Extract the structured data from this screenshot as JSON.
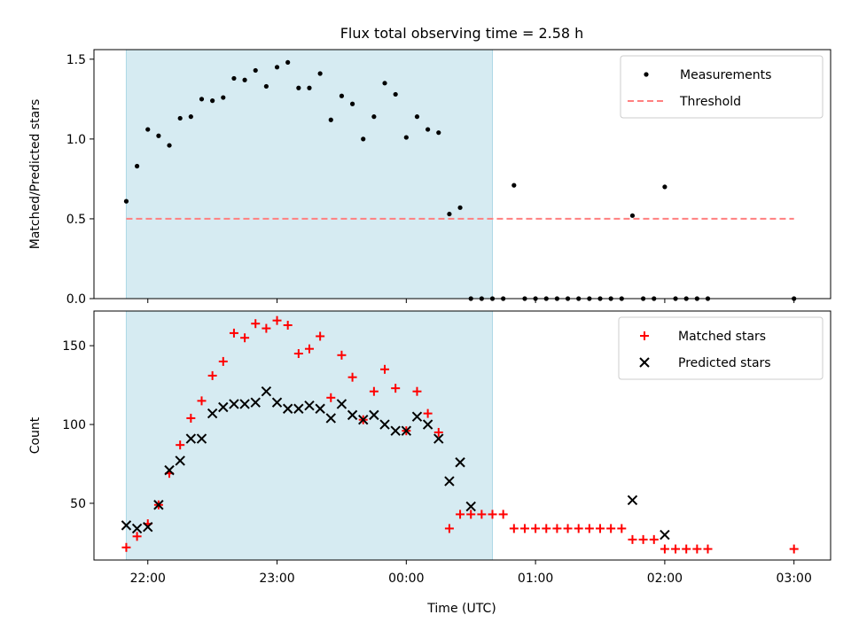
{
  "title": "Flux total observing time = 2.58 h",
  "xlabel": "Time (UTC)",
  "colors": {
    "shade": "#add8e6",
    "threshold": "#ff7f7f",
    "measurement": "#000000",
    "matched": "#ff0000",
    "predicted": "#000000"
  },
  "chart_data": [
    {
      "type": "scatter",
      "ylabel": "Matched/Predicted stars",
      "ylim": [
        0,
        1.56
      ],
      "yticks": [
        "0.0",
        "0.5",
        "1.0",
        "1.5"
      ],
      "ytick_values": [
        0,
        0.5,
        1.0,
        1.5
      ],
      "shaded_interval": [
        "21:50",
        "00:40"
      ],
      "legend_position": "upper right",
      "threshold": {
        "name": "Threshold",
        "value": 0.5,
        "x_range": [
          "21:50",
          "03:00"
        ]
      },
      "series": [
        {
          "name": "Measurements",
          "marker": "dot",
          "x": [
            "21:50",
            "21:55",
            "22:00",
            "22:05",
            "22:10",
            "22:15",
            "22:20",
            "22:25",
            "22:30",
            "22:35",
            "22:40",
            "22:45",
            "22:50",
            "22:55",
            "23:00",
            "23:05",
            "23:10",
            "23:15",
            "23:20",
            "23:25",
            "23:30",
            "23:35",
            "23:40",
            "23:45",
            "23:50",
            "23:55",
            "00:00",
            "00:05",
            "00:10",
            "00:15",
            "00:20",
            "00:25",
            "00:30",
            "00:35",
            "00:40",
            "00:45",
            "00:50",
            "00:55",
            "01:00",
            "01:05",
            "01:10",
            "01:15",
            "01:20",
            "01:25",
            "01:30",
            "01:35",
            "01:40",
            "01:45",
            "01:50",
            "01:55",
            "02:00",
            "02:05",
            "02:10",
            "02:15",
            "02:20",
            "03:00"
          ],
          "y": [
            0.61,
            0.83,
            1.06,
            1.02,
            0.96,
            1.13,
            1.14,
            1.25,
            1.24,
            1.26,
            1.38,
            1.37,
            1.43,
            1.33,
            1.45,
            1.48,
            1.32,
            1.32,
            1.41,
            1.12,
            1.27,
            1.22,
            1.0,
            1.14,
            1.35,
            1.28,
            1.01,
            1.14,
            1.06,
            1.04,
            0.53,
            0.57,
            0,
            0,
            0,
            0,
            0.71,
            0,
            0,
            0,
            0,
            0,
            0,
            0,
            0,
            0,
            0,
            0.52,
            0,
            0,
            0.7,
            0,
            0,
            0,
            0,
            0
          ]
        }
      ]
    },
    {
      "type": "scatter",
      "ylabel": "Count",
      "ylim": [
        14,
        172
      ],
      "yticks": [
        "50",
        "100",
        "150"
      ],
      "ytick_values": [
        50,
        100,
        150
      ],
      "shaded_interval": [
        "21:50",
        "00:40"
      ],
      "legend_position": "upper right",
      "xticks": [
        "22:00",
        "23:00",
        "00:00",
        "01:00",
        "02:00",
        "03:00"
      ],
      "xtick_values": [
        "22:00",
        "23:00",
        "00:00",
        "01:00",
        "02:00",
        "03:00"
      ],
      "series": [
        {
          "name": "Matched stars",
          "marker": "plus",
          "x": [
            "21:50",
            "21:55",
            "22:00",
            "22:05",
            "22:10",
            "22:15",
            "22:20",
            "22:25",
            "22:30",
            "22:35",
            "22:40",
            "22:45",
            "22:50",
            "22:55",
            "23:00",
            "23:05",
            "23:10",
            "23:15",
            "23:20",
            "23:25",
            "23:30",
            "23:35",
            "23:40",
            "23:45",
            "23:50",
            "23:55",
            "00:00",
            "00:05",
            "00:10",
            "00:15",
            "00:20",
            "00:25",
            "00:30",
            "00:35",
            "00:40",
            "00:45",
            "00:50",
            "00:55",
            "01:00",
            "01:05",
            "01:10",
            "01:15",
            "01:20",
            "01:25",
            "01:30",
            "01:35",
            "01:40",
            "01:45",
            "01:50",
            "01:55",
            "02:00",
            "02:05",
            "02:10",
            "02:15",
            "02:20",
            "03:00"
          ],
          "y": [
            22,
            29,
            37,
            49,
            69,
            87,
            104,
            115,
            131,
            140,
            158,
            155,
            164,
            161,
            166,
            163,
            145,
            148,
            156,
            117,
            144,
            130,
            103,
            121,
            135,
            123,
            96,
            121,
            107,
            95,
            34,
            43,
            43,
            43,
            43,
            43,
            34,
            34,
            34,
            34,
            34,
            34,
            34,
            34,
            34,
            34,
            34,
            27,
            27,
            27,
            21,
            21,
            21,
            21,
            21,
            21
          ]
        },
        {
          "name": "Predicted stars",
          "marker": "x",
          "x": [
            "21:50",
            "21:55",
            "22:00",
            "22:05",
            "22:10",
            "22:15",
            "22:20",
            "22:25",
            "22:30",
            "22:35",
            "22:40",
            "22:45",
            "22:50",
            "22:55",
            "23:00",
            "23:05",
            "23:10",
            "23:15",
            "23:20",
            "23:25",
            "23:30",
            "23:35",
            "23:40",
            "23:45",
            "23:50",
            "23:55",
            "00:00",
            "00:05",
            "00:10",
            "00:15",
            "00:20",
            "00:25",
            "00:30",
            "01:45",
            "02:00"
          ],
          "y": [
            36,
            34,
            35,
            49,
            71,
            77,
            91,
            91,
            107,
            111,
            113,
            113,
            114,
            121,
            114,
            110,
            110,
            112,
            110,
            104,
            113,
            106,
            103,
            106,
            100,
            96,
            96,
            105,
            100,
            91,
            64,
            76,
            48,
            52,
            30
          ]
        }
      ]
    }
  ]
}
